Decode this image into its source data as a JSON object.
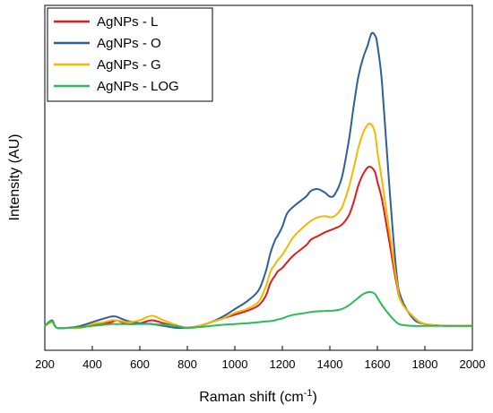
{
  "chart_data": {
    "type": "line",
    "xlabel": "Raman shift (cm",
    "xlabel_sup": "-1",
    "xlabel_close": ")",
    "ylabel": "Intensity (AU)",
    "xlim": [
      200,
      2000
    ],
    "ylim": [
      -0.6,
      8.6
    ],
    "grid": false,
    "legend_position": "top-left",
    "x_ticks": [
      200,
      400,
      600,
      800,
      1000,
      1200,
      1400,
      1600,
      1800,
      2000
    ],
    "x_tick_labels": [
      "200",
      "400",
      "600",
      "800",
      "1000",
      "1200",
      "1400",
      "1600",
      "1800",
      "2000"
    ],
    "x": [
      200,
      230,
      250,
      300,
      350,
      400,
      450,
      480,
      500,
      520,
      550,
      600,
      650,
      700,
      750,
      800,
      850,
      900,
      950,
      1000,
      1050,
      1100,
      1130,
      1150,
      1170,
      1180,
      1200,
      1220,
      1250,
      1300,
      1320,
      1350,
      1380,
      1400,
      1420,
      1450,
      1480,
      1500,
      1520,
      1540,
      1560,
      1575,
      1590,
      1600,
      1620,
      1650,
      1680,
      1700,
      1750,
      1800,
      1900,
      2000
    ],
    "series": [
      {
        "name": "AgNPs - L",
        "color": "#e41a1c",
        "values": [
          0.05,
          0.15,
          0.0,
          0.0,
          0.0,
          0.08,
          0.12,
          0.15,
          0.2,
          0.16,
          0.1,
          0.12,
          0.2,
          0.12,
          0.05,
          0.0,
          0.05,
          0.15,
          0.25,
          0.35,
          0.45,
          0.6,
          0.85,
          1.2,
          1.4,
          1.5,
          1.6,
          1.75,
          1.95,
          2.2,
          2.35,
          2.45,
          2.55,
          2.6,
          2.65,
          2.75,
          3.0,
          3.35,
          3.8,
          4.1,
          4.28,
          4.28,
          4.15,
          3.9,
          3.4,
          2.3,
          1.2,
          0.7,
          0.3,
          0.1,
          0.05,
          0.05
        ]
      },
      {
        "name": "AgNPs - O",
        "color": "#2f5f98",
        "values": [
          0.05,
          0.2,
          0.0,
          0.0,
          0.05,
          0.15,
          0.25,
          0.3,
          0.3,
          0.25,
          0.18,
          0.12,
          0.1,
          0.05,
          0.0,
          0.0,
          0.05,
          0.15,
          0.3,
          0.5,
          0.7,
          1.0,
          1.5,
          2.0,
          2.35,
          2.45,
          2.7,
          3.05,
          3.25,
          3.5,
          3.65,
          3.7,
          3.6,
          3.5,
          3.55,
          4.0,
          5.0,
          5.9,
          6.7,
          7.2,
          7.55,
          7.85,
          7.8,
          7.55,
          6.5,
          3.8,
          1.5,
          0.8,
          0.25,
          0.1,
          0.05,
          0.05
        ]
      },
      {
        "name": "AgNPs - G",
        "color": "#f5b800",
        "values": [
          0.05,
          0.15,
          0.0,
          0.0,
          0.0,
          0.1,
          0.15,
          0.2,
          0.2,
          0.18,
          0.15,
          0.2,
          0.32,
          0.2,
          0.08,
          0.0,
          0.05,
          0.15,
          0.25,
          0.4,
          0.5,
          0.7,
          1.1,
          1.5,
          1.7,
          1.8,
          1.95,
          2.15,
          2.45,
          2.75,
          2.85,
          2.95,
          2.98,
          2.95,
          2.98,
          3.2,
          3.75,
          4.25,
          4.8,
          5.2,
          5.42,
          5.42,
          5.2,
          4.7,
          3.9,
          2.6,
          1.3,
          0.7,
          0.3,
          0.1,
          0.05,
          0.05
        ]
      },
      {
        "name": "AgNPs - LOG",
        "color": "#2dba5a",
        "values": [
          0.05,
          0.18,
          0.0,
          0.0,
          0.02,
          0.05,
          0.08,
          0.1,
          0.1,
          0.1,
          0.1,
          0.1,
          0.1,
          0.08,
          0.05,
          0.0,
          0.02,
          0.05,
          0.08,
          0.1,
          0.12,
          0.15,
          0.17,
          0.18,
          0.2,
          0.22,
          0.25,
          0.3,
          0.35,
          0.4,
          0.42,
          0.44,
          0.45,
          0.45,
          0.46,
          0.5,
          0.6,
          0.7,
          0.8,
          0.9,
          0.95,
          0.95,
          0.9,
          0.8,
          0.6,
          0.35,
          0.15,
          0.08,
          0.05,
          0.05,
          0.05,
          0.05
        ]
      }
    ]
  }
}
